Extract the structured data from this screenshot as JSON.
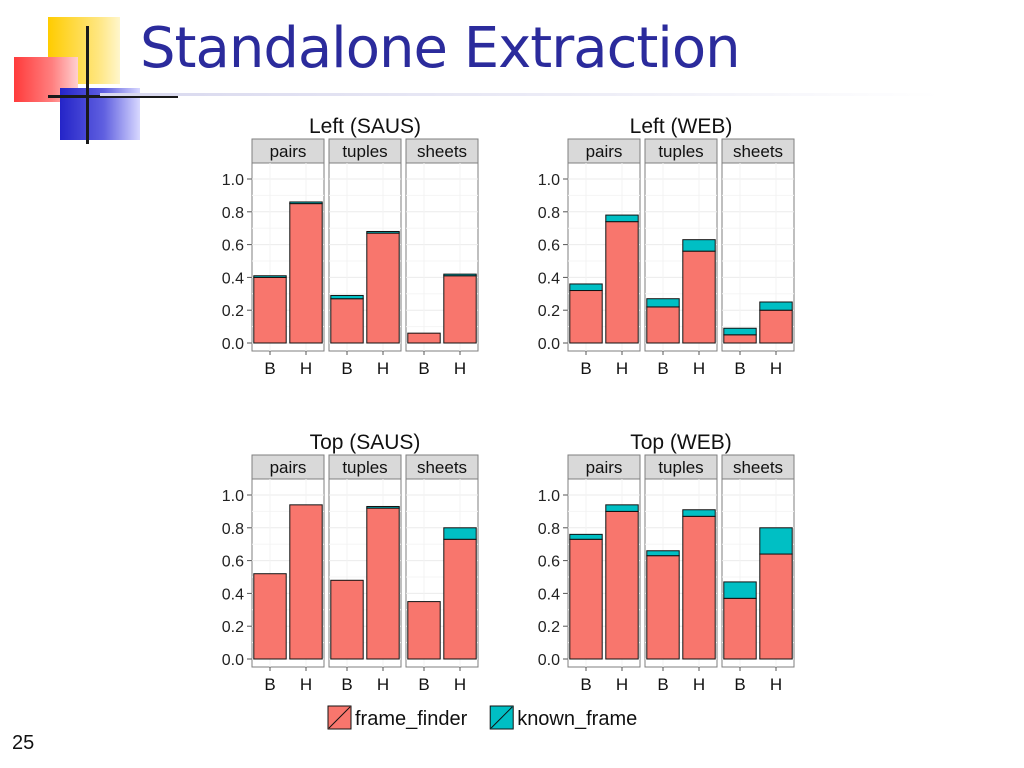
{
  "slide": {
    "title": "Standalone Extraction",
    "number": "25"
  },
  "colors": {
    "title": "#2b2b9c",
    "frame_finder": "#f8766d",
    "known_frame": "#00bfc4",
    "strip": "#d9d9d9",
    "panel_border": "#7f7f7f"
  },
  "chart_data": [
    {
      "type": "bar",
      "stacked": true,
      "title": "Left (SAUS)",
      "facets": [
        "pairs",
        "tuples",
        "sheets"
      ],
      "categories": [
        "B",
        "H"
      ],
      "ylim": [
        0,
        1.0
      ],
      "yticks": [
        "0.0",
        "0.2",
        "0.4",
        "0.6",
        "0.8",
        "1.0"
      ],
      "series": [
        {
          "name": "frame_finder",
          "values": {
            "pairs": [
              0.4,
              0.85
            ],
            "tuples": [
              0.27,
              0.67
            ],
            "sheets": [
              0.06,
              0.41
            ]
          }
        },
        {
          "name": "known_frame",
          "values": {
            "pairs": [
              0.01,
              0.01
            ],
            "tuples": [
              0.02,
              0.01
            ],
            "sheets": [
              0.0,
              0.01
            ]
          }
        }
      ]
    },
    {
      "type": "bar",
      "stacked": true,
      "title": "Left (WEB)",
      "facets": [
        "pairs",
        "tuples",
        "sheets"
      ],
      "categories": [
        "B",
        "H"
      ],
      "ylim": [
        0,
        1.0
      ],
      "yticks": [
        "0.0",
        "0.2",
        "0.4",
        "0.6",
        "0.8",
        "1.0"
      ],
      "series": [
        {
          "name": "frame_finder",
          "values": {
            "pairs": [
              0.32,
              0.74
            ],
            "tuples": [
              0.22,
              0.56
            ],
            "sheets": [
              0.05,
              0.2
            ]
          }
        },
        {
          "name": "known_frame",
          "values": {
            "pairs": [
              0.04,
              0.04
            ],
            "tuples": [
              0.05,
              0.07
            ],
            "sheets": [
              0.04,
              0.05
            ]
          }
        }
      ]
    },
    {
      "type": "bar",
      "stacked": true,
      "title": "Top (SAUS)",
      "facets": [
        "pairs",
        "tuples",
        "sheets"
      ],
      "categories": [
        "B",
        "H"
      ],
      "ylim": [
        0,
        1.0
      ],
      "yticks": [
        "0.0",
        "0.2",
        "0.4",
        "0.6",
        "0.8",
        "1.0"
      ],
      "series": [
        {
          "name": "frame_finder",
          "values": {
            "pairs": [
              0.52,
              0.94
            ],
            "tuples": [
              0.48,
              0.92
            ],
            "sheets": [
              0.35,
              0.73
            ]
          }
        },
        {
          "name": "known_frame",
          "values": {
            "pairs": [
              0.0,
              0.0
            ],
            "tuples": [
              0.0,
              0.01
            ],
            "sheets": [
              0.0,
              0.07
            ]
          }
        }
      ]
    },
    {
      "type": "bar",
      "stacked": true,
      "title": "Top (WEB)",
      "facets": [
        "pairs",
        "tuples",
        "sheets"
      ],
      "categories": [
        "B",
        "H"
      ],
      "ylim": [
        0,
        1.0
      ],
      "yticks": [
        "0.0",
        "0.2",
        "0.4",
        "0.6",
        "0.8",
        "1.0"
      ],
      "series": [
        {
          "name": "frame_finder",
          "values": {
            "pairs": [
              0.73,
              0.9
            ],
            "tuples": [
              0.63,
              0.87
            ],
            "sheets": [
              0.37,
              0.64
            ]
          }
        },
        {
          "name": "known_frame",
          "values": {
            "pairs": [
              0.03,
              0.04
            ],
            "tuples": [
              0.03,
              0.04
            ],
            "sheets": [
              0.1,
              0.16
            ]
          }
        }
      ]
    }
  ],
  "legend": {
    "items": [
      {
        "label": "frame_finder",
        "color": "#f8766d"
      },
      {
        "label": "known_frame",
        "color": "#00bfc4"
      }
    ]
  }
}
